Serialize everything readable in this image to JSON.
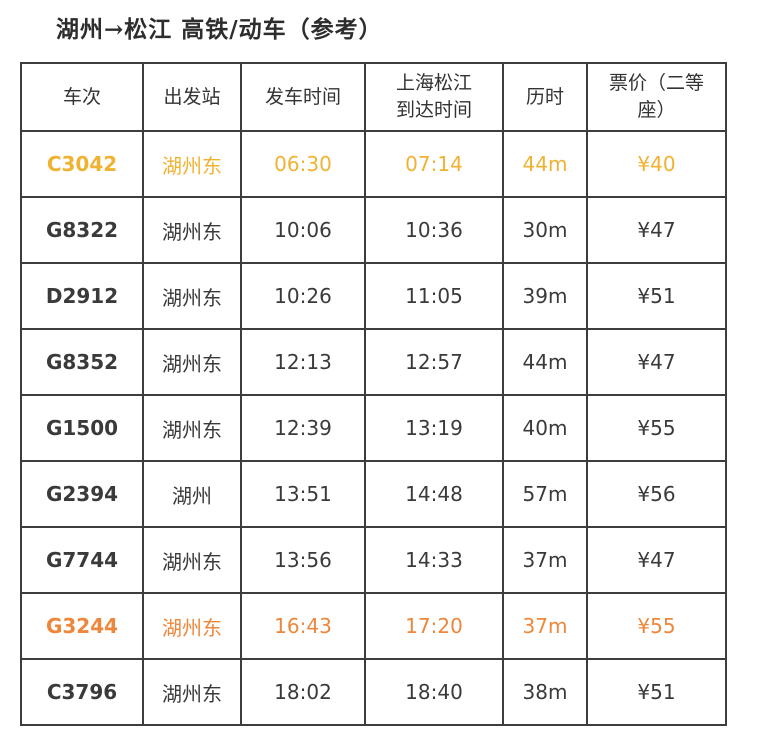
{
  "title": "湖州→松江 高铁/动车（参考）",
  "colors": {
    "gold": "#F0B232",
    "orange": "#ED873B",
    "text": "#3A3A3A",
    "border": "#3D3D3D"
  },
  "table": {
    "headers": {
      "train_no": "车次",
      "departure_station": "出发站",
      "departure_time": "发车时间",
      "arrival_time": "上海松江\n到达时间",
      "duration": "历时",
      "price": "票价（二等\n座）"
    },
    "rows": [
      {
        "train": "C3042",
        "station": "湖州东",
        "depart": "06:30",
        "arrive": "07:14",
        "duration": "44m",
        "price": "¥40",
        "highlight": "gold"
      },
      {
        "train": "G8322",
        "station": "湖州东",
        "depart": "10:06",
        "arrive": "10:36",
        "duration": "30m",
        "price": "¥47",
        "highlight": "none"
      },
      {
        "train": "D2912",
        "station": "湖州东",
        "depart": "10:26",
        "arrive": "11:05",
        "duration": "39m",
        "price": "¥51",
        "highlight": "none"
      },
      {
        "train": "G8352",
        "station": "湖州东",
        "depart": "12:13",
        "arrive": "12:57",
        "duration": "44m",
        "price": "¥47",
        "highlight": "none"
      },
      {
        "train": "G1500",
        "station": "湖州东",
        "depart": "12:39",
        "arrive": "13:19",
        "duration": "40m",
        "price": "¥55",
        "highlight": "none"
      },
      {
        "train": "G2394",
        "station": "湖州",
        "depart": "13:51",
        "arrive": "14:48",
        "duration": "57m",
        "price": "¥56",
        "highlight": "none"
      },
      {
        "train": "G7744",
        "station": "湖州东",
        "depart": "13:56",
        "arrive": "14:33",
        "duration": "37m",
        "price": "¥47",
        "highlight": "none"
      },
      {
        "train": "G3244",
        "station": "湖州东",
        "depart": "16:43",
        "arrive": "17:20",
        "duration": "37m",
        "price": "¥55",
        "highlight": "orange"
      },
      {
        "train": "C3796",
        "station": "湖州东",
        "depart": "18:02",
        "arrive": "18:40",
        "duration": "38m",
        "price": "¥51",
        "highlight": "none"
      }
    ]
  }
}
